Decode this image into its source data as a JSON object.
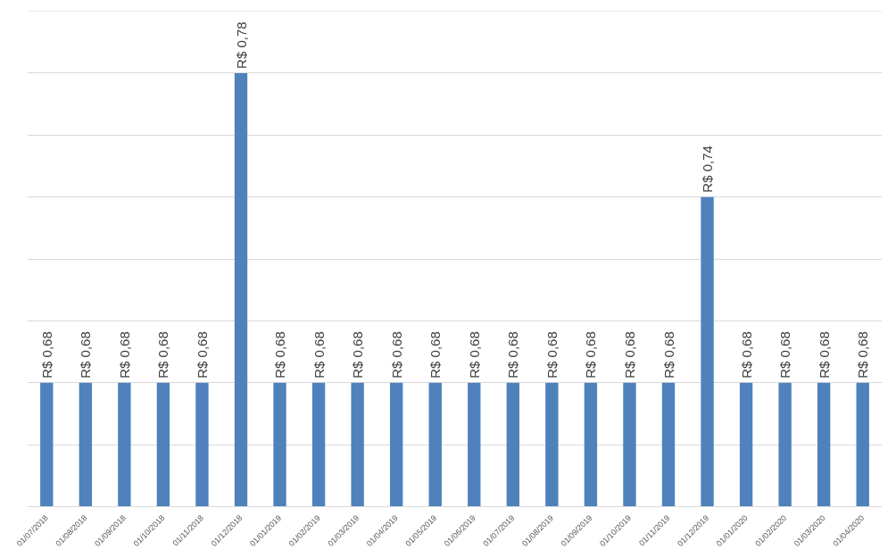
{
  "chart_data": {
    "type": "bar",
    "categories": [
      "01/07/2018",
      "01/08/2018",
      "01/09/2018",
      "01/10/2018",
      "01/11/2018",
      "01/12/2018",
      "01/01/2019",
      "01/02/2019",
      "01/03/2019",
      "01/04/2019",
      "01/05/2019",
      "01/06/2019",
      "01/07/2019",
      "01/08/2019",
      "01/09/2019",
      "01/10/2019",
      "01/11/2019",
      "01/12/2019",
      "01/01/2020",
      "01/02/2020",
      "01/03/2020",
      "01/04/2020"
    ],
    "values": [
      0.68,
      0.68,
      0.68,
      0.68,
      0.68,
      0.78,
      0.68,
      0.68,
      0.68,
      0.68,
      0.68,
      0.68,
      0.68,
      0.68,
      0.68,
      0.68,
      0.68,
      0.74,
      0.68,
      0.68,
      0.68,
      0.68
    ],
    "value_labels": [
      "R$ 0,68",
      "R$ 0,68",
      "R$ 0,68",
      "R$ 0,68",
      "R$ 0,68",
      "R$ 0,78",
      "R$ 0,68",
      "R$ 0,68",
      "R$ 0,68",
      "R$ 0,68",
      "R$ 0,68",
      "R$ 0,68",
      "R$ 0,68",
      "R$ 0,68",
      "R$ 0,68",
      "R$ 0,68",
      "R$ 0,68",
      "R$ 0,74",
      "R$ 0,68",
      "R$ 0,68",
      "R$ 0,68",
      "R$ 0,68"
    ],
    "color": "#4f81bd",
    "ylim": [
      0.64,
      0.8
    ],
    "yticks": [
      {
        "value": 0.64,
        "label": null
      },
      {
        "value": 0.66,
        "label": null
      },
      {
        "value": 0.68,
        "label": null
      },
      {
        "value": 0.7,
        "label": null
      },
      {
        "value": 0.72,
        "label": null
      },
      {
        "value": 0.74,
        "label": null
      },
      {
        "value": 0.76,
        "label": null
      },
      {
        "value": 0.78,
        "label": null
      },
      {
        "value": 0.8,
        "label": null
      }
    ],
    "grid": "y",
    "tick_labels": "x"
  }
}
